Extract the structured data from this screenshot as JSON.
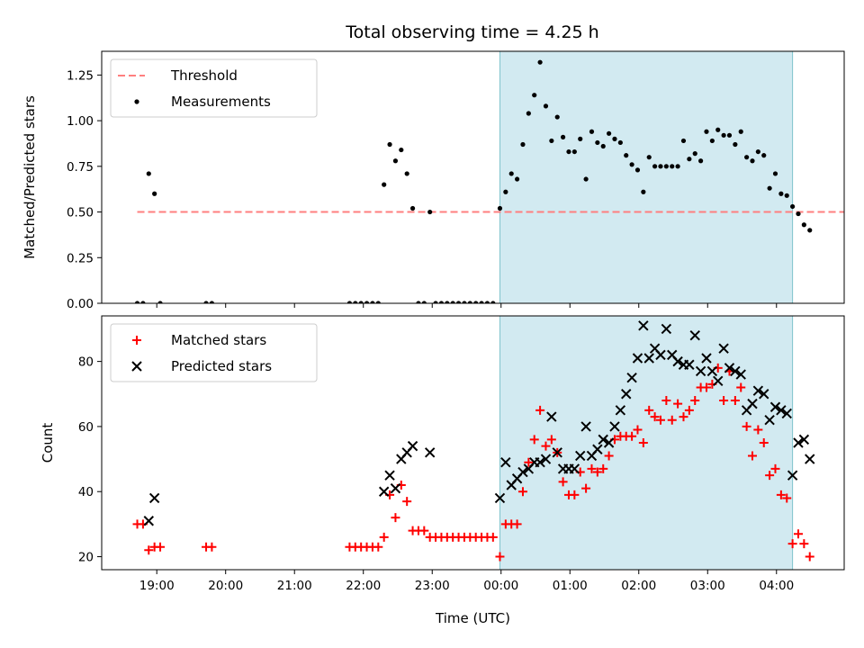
{
  "figure": {
    "title": "Total observing time = 4.25 h"
  },
  "chart_data": [
    {
      "type": "scatter",
      "panel": "top",
      "ylabel": "Matched/Predicted stars",
      "xlabel": "",
      "ylim": [
        0,
        1.38
      ],
      "yticks": [
        0,
        0.25,
        0.5,
        0.75,
        1.0,
        1.25
      ],
      "ytick_labels": [
        "0.00",
        "0.25",
        "0.50",
        "0.75",
        "1.00",
        "1.25"
      ],
      "xlim": [
        "18:12",
        "04:59"
      ],
      "xticks": [
        "19:00",
        "20:00",
        "21:00",
        "22:00",
        "23:00",
        "00:00",
        "01:00",
        "02:00",
        "03:00",
        "04:00"
      ],
      "shaded_span": [
        "23:59",
        "04:14"
      ],
      "shade_color": "#add8e6",
      "threshold": {
        "name": "Threshold",
        "value": 0.5,
        "x": [
          "18:43",
          "05:17"
        ],
        "color": "#ff7f7f"
      },
      "series": [
        {
          "name": "Measurements",
          "color": "#000000",
          "points": [
            [
              "18:43",
              0
            ],
            [
              "18:48",
              0
            ],
            [
              "18:53",
              0.71
            ],
            [
              "18:58",
              0.6
            ],
            [
              "19:03",
              0
            ],
            [
              "19:43",
              0
            ],
            [
              "19:48",
              0
            ],
            [
              "21:48",
              0
            ],
            [
              "21:53",
              0
            ],
            [
              "21:58",
              0
            ],
            [
              "22:03",
              0
            ],
            [
              "22:08",
              0
            ],
            [
              "22:13",
              0
            ],
            [
              "22:18",
              0.65
            ],
            [
              "22:23",
              0.87
            ],
            [
              "22:28",
              0.78
            ],
            [
              "22:33",
              0.84
            ],
            [
              "22:38",
              0.71
            ],
            [
              "22:43",
              0.52
            ],
            [
              "22:48",
              0
            ],
            [
              "22:53",
              0
            ],
            [
              "22:58",
              0.5
            ],
            [
              "23:03",
              0
            ],
            [
              "23:08",
              0
            ],
            [
              "23:13",
              0
            ],
            [
              "23:18",
              0
            ],
            [
              "23:23",
              0
            ],
            [
              "23:28",
              0
            ],
            [
              "23:33",
              0
            ],
            [
              "23:38",
              0
            ],
            [
              "23:43",
              0
            ],
            [
              "23:48",
              0
            ],
            [
              "23:53",
              0
            ],
            [
              "23:59",
              0.52
            ],
            [
              "00:04",
              0.61
            ],
            [
              "00:09",
              0.71
            ],
            [
              "00:14",
              0.68
            ],
            [
              "00:19",
              0.87
            ],
            [
              "00:24",
              1.04
            ],
            [
              "00:29",
              1.14
            ],
            [
              "00:34",
              1.32
            ],
            [
              "00:39",
              1.08
            ],
            [
              "00:44",
              0.89
            ],
            [
              "00:49",
              1.02
            ],
            [
              "00:54",
              0.91
            ],
            [
              "00:59",
              0.83
            ],
            [
              "01:04",
              0.83
            ],
            [
              "01:09",
              0.9
            ],
            [
              "01:14",
              0.68
            ],
            [
              "01:19",
              0.94
            ],
            [
              "01:24",
              0.88
            ],
            [
              "01:29",
              0.86
            ],
            [
              "01:34",
              0.93
            ],
            [
              "01:39",
              0.9
            ],
            [
              "01:44",
              0.88
            ],
            [
              "01:49",
              0.81
            ],
            [
              "01:54",
              0.76
            ],
            [
              "01:59",
              0.73
            ],
            [
              "02:04",
              0.61
            ],
            [
              "02:09",
              0.8
            ],
            [
              "02:14",
              0.75
            ],
            [
              "02:19",
              0.75
            ],
            [
              "02:24",
              0.75
            ],
            [
              "02:29",
              0.75
            ],
            [
              "02:34",
              0.75
            ],
            [
              "02:39",
              0.89
            ],
            [
              "02:44",
              0.79
            ],
            [
              "02:49",
              0.82
            ],
            [
              "02:54",
              0.78
            ],
            [
              "02:59",
              0.94
            ],
            [
              "03:04",
              0.89
            ],
            [
              "03:09",
              0.95
            ],
            [
              "03:14",
              0.92
            ],
            [
              "03:19",
              0.92
            ],
            [
              "03:24",
              0.87
            ],
            [
              "03:29",
              0.94
            ],
            [
              "03:34",
              0.8
            ],
            [
              "03:39",
              0.78
            ],
            [
              "03:44",
              0.83
            ],
            [
              "03:49",
              0.81
            ],
            [
              "03:54",
              0.63
            ],
            [
              "03:59",
              0.71
            ],
            [
              "04:04",
              0.6
            ],
            [
              "04:09",
              0.59
            ],
            [
              "04:14",
              0.53
            ],
            [
              "04:19",
              0.49
            ],
            [
              "04:24",
              0.43
            ],
            [
              "04:29",
              0.4
            ]
          ]
        }
      ],
      "legend": {
        "position": "top-left",
        "entries": [
          "Threshold",
          "Measurements"
        ]
      }
    },
    {
      "type": "scatter",
      "panel": "bottom",
      "ylabel": "Count",
      "xlabel": "Time (UTC)",
      "ylim": [
        16,
        94
      ],
      "yticks": [
        20,
        40,
        60,
        80
      ],
      "ytick_labels": [
        "20",
        "40",
        "60",
        "80"
      ],
      "xlim": [
        "18:12",
        "04:59"
      ],
      "xticks": [
        "19:00",
        "20:00",
        "21:00",
        "22:00",
        "23:00",
        "00:00",
        "01:00",
        "02:00",
        "03:00",
        "04:00"
      ],
      "shaded_span": [
        "23:59",
        "04:14"
      ],
      "shade_color": "#add8e6",
      "series": [
        {
          "name": "Matched stars",
          "marker": "plus",
          "color": "#ff0000",
          "points": [
            [
              "18:43",
              30
            ],
            [
              "18:48",
              30
            ],
            [
              "18:53",
              22
            ],
            [
              "18:58",
              23
            ],
            [
              "19:03",
              23
            ],
            [
              "19:43",
              23
            ],
            [
              "19:48",
              23
            ],
            [
              "21:48",
              23
            ],
            [
              "21:53",
              23
            ],
            [
              "21:58",
              23
            ],
            [
              "22:03",
              23
            ],
            [
              "22:08",
              23
            ],
            [
              "22:13",
              23
            ],
            [
              "22:18",
              26
            ],
            [
              "22:23",
              39
            ],
            [
              "22:28",
              32
            ],
            [
              "22:33",
              42
            ],
            [
              "22:38",
              37
            ],
            [
              "22:43",
              28
            ],
            [
              "22:48",
              28
            ],
            [
              "22:53",
              28
            ],
            [
              "22:58",
              26
            ],
            [
              "23:03",
              26
            ],
            [
              "23:08",
              26
            ],
            [
              "23:13",
              26
            ],
            [
              "23:18",
              26
            ],
            [
              "23:23",
              26
            ],
            [
              "23:28",
              26
            ],
            [
              "23:33",
              26
            ],
            [
              "23:38",
              26
            ],
            [
              "23:43",
              26
            ],
            [
              "23:48",
              26
            ],
            [
              "23:53",
              26
            ],
            [
              "23:59",
              20
            ],
            [
              "00:04",
              30
            ],
            [
              "00:09",
              30
            ],
            [
              "00:14",
              30
            ],
            [
              "00:19",
              40
            ],
            [
              "00:24",
              49
            ],
            [
              "00:29",
              56
            ],
            [
              "00:34",
              65
            ],
            [
              "00:39",
              54
            ],
            [
              "00:44",
              56
            ],
            [
              "00:49",
              52
            ],
            [
              "00:54",
              43
            ],
            [
              "00:59",
              39
            ],
            [
              "01:04",
              39
            ],
            [
              "01:09",
              46
            ],
            [
              "01:14",
              41
            ],
            [
              "01:19",
              47
            ],
            [
              "01:24",
              46
            ],
            [
              "01:29",
              47
            ],
            [
              "01:34",
              51
            ],
            [
              "01:39",
              56
            ],
            [
              "01:44",
              57
            ],
            [
              "01:49",
              57
            ],
            [
              "01:54",
              57
            ],
            [
              "01:59",
              59
            ],
            [
              "02:04",
              55
            ],
            [
              "02:09",
              65
            ],
            [
              "02:14",
              63
            ],
            [
              "02:19",
              62
            ],
            [
              "02:24",
              68
            ],
            [
              "02:29",
              62
            ],
            [
              "02:34",
              67
            ],
            [
              "02:39",
              63
            ],
            [
              "02:44",
              65
            ],
            [
              "02:49",
              68
            ],
            [
              "02:54",
              72
            ],
            [
              "02:59",
              72
            ],
            [
              "03:04",
              73
            ],
            [
              "03:09",
              78
            ],
            [
              "03:14",
              68
            ],
            [
              "03:19",
              77
            ],
            [
              "03:24",
              68
            ],
            [
              "03:29",
              72
            ],
            [
              "03:34",
              60
            ],
            [
              "03:39",
              51
            ],
            [
              "03:44",
              59
            ],
            [
              "03:49",
              55
            ],
            [
              "03:54",
              45
            ],
            [
              "03:59",
              47
            ],
            [
              "04:04",
              39
            ],
            [
              "04:09",
              38
            ],
            [
              "04:14",
              24
            ],
            [
              "04:19",
              27
            ],
            [
              "04:24",
              24
            ],
            [
              "04:29",
              20
            ]
          ]
        },
        {
          "name": "Predicted stars",
          "marker": "x",
          "color": "#000000",
          "points": [
            [
              "18:53",
              31
            ],
            [
              "18:58",
              38
            ],
            [
              "22:18",
              40
            ],
            [
              "22:23",
              45
            ],
            [
              "22:28",
              41
            ],
            [
              "22:33",
              50
            ],
            [
              "22:38",
              52
            ],
            [
              "22:43",
              54
            ],
            [
              "22:58",
              52
            ],
            [
              "23:59",
              38
            ],
            [
              "00:04",
              49
            ],
            [
              "00:09",
              42
            ],
            [
              "00:14",
              44
            ],
            [
              "00:19",
              46
            ],
            [
              "00:24",
              47
            ],
            [
              "00:29",
              49
            ],
            [
              "00:34",
              49
            ],
            [
              "00:39",
              50
            ],
            [
              "00:44",
              63
            ],
            [
              "00:49",
              52
            ],
            [
              "00:54",
              47
            ],
            [
              "00:59",
              47
            ],
            [
              "01:04",
              47
            ],
            [
              "01:09",
              51
            ],
            [
              "01:14",
              60
            ],
            [
              "01:19",
              51
            ],
            [
              "01:24",
              53
            ],
            [
              "01:29",
              56
            ],
            [
              "01:34",
              55
            ],
            [
              "01:39",
              60
            ],
            [
              "01:44",
              65
            ],
            [
              "01:49",
              70
            ],
            [
              "01:54",
              75
            ],
            [
              "01:59",
              81
            ],
            [
              "02:04",
              91
            ],
            [
              "02:09",
              81
            ],
            [
              "02:14",
              84
            ],
            [
              "02:19",
              82
            ],
            [
              "02:24",
              90
            ],
            [
              "02:29",
              82
            ],
            [
              "02:34",
              80
            ],
            [
              "02:39",
              79
            ],
            [
              "02:44",
              79
            ],
            [
              "02:49",
              88
            ],
            [
              "02:54",
              77
            ],
            [
              "02:59",
              81
            ],
            [
              "03:04",
              77
            ],
            [
              "03:09",
              74
            ],
            [
              "03:14",
              84
            ],
            [
              "03:19",
              78
            ],
            [
              "03:24",
              77
            ],
            [
              "03:29",
              76
            ],
            [
              "03:34",
              65
            ],
            [
              "03:39",
              67
            ],
            [
              "03:44",
              71
            ],
            [
              "03:49",
              70
            ],
            [
              "03:54",
              62
            ],
            [
              "03:59",
              66
            ],
            [
              "04:04",
              65
            ],
            [
              "04:09",
              64
            ],
            [
              "04:14",
              45
            ],
            [
              "04:19",
              55
            ],
            [
              "04:24",
              56
            ],
            [
              "04:29",
              50
            ]
          ]
        }
      ],
      "legend": {
        "position": "top-left",
        "entries": [
          "Matched stars",
          "Predicted stars"
        ]
      }
    }
  ]
}
